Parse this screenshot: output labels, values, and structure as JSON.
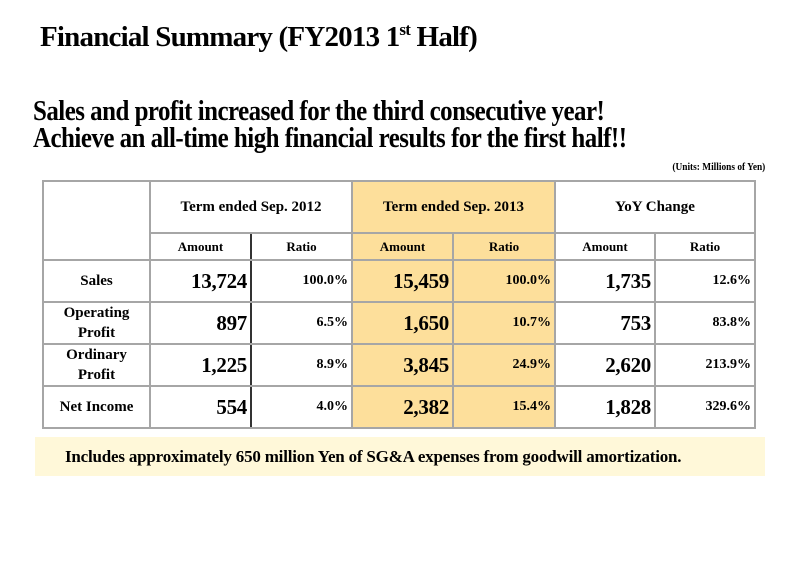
{
  "title": {
    "main": "Financial Summary (FY2013 1",
    "sup": "st",
    "end": " Half)"
  },
  "headline": {
    "line1": "Sales and profit increased for the third consecutive year!",
    "line2": "Achieve an all-time high financial results for the first half!!"
  },
  "units": "(Units: Millions of Yen)",
  "table": {
    "period_headers": [
      "Term ended Sep. 2012",
      "Term ended Sep. 2013",
      "YoY Change"
    ],
    "sub_headers": [
      "Amount",
      "Ratio",
      "Amount",
      "Ratio",
      "Amount",
      "Ratio"
    ],
    "highlight_color": "#fddf9b",
    "rows": [
      {
        "label": [
          "Sales"
        ],
        "values": [
          "13,724",
          "100.0%",
          "15,459",
          "100.0%",
          "1,735",
          "12.6%"
        ]
      },
      {
        "label": [
          "Operating",
          "Profit"
        ],
        "values": [
          "897",
          "6.5%",
          "1,650",
          "10.7%",
          "753",
          "83.8%"
        ]
      },
      {
        "label": [
          "Ordinary",
          "Profit"
        ],
        "values": [
          "1,225",
          "8.9%",
          "3,845",
          "24.9%",
          "2,620",
          "213.9%"
        ]
      },
      {
        "label": [
          "Net Income"
        ],
        "values": [
          "554",
          "4.0%",
          "2,382",
          "15.4%",
          "1,828",
          "329.6%"
        ]
      }
    ]
  },
  "note": "Includes approximately 650 million Yen of SG&A expenses from goodwill amortization."
}
